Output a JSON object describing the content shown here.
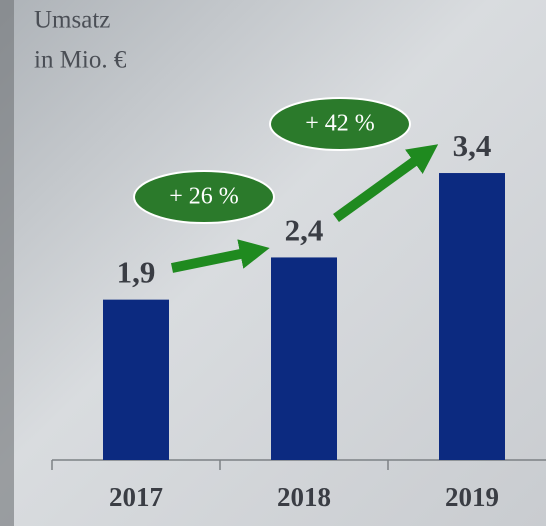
{
  "chart_data": {
    "type": "bar",
    "title": "Umsatz",
    "subtitle": "in Mio. €",
    "categories": [
      "2017",
      "2018",
      "2019"
    ],
    "values": [
      1.9,
      2.4,
      3.4
    ],
    "value_labels": [
      "1,9",
      "2,4",
      "3,4"
    ],
    "color": "#0c2a80",
    "ylim": [
      0,
      5
    ],
    "annotations": [
      "+ 26 %",
      "+ 42 %"
    ]
  }
}
